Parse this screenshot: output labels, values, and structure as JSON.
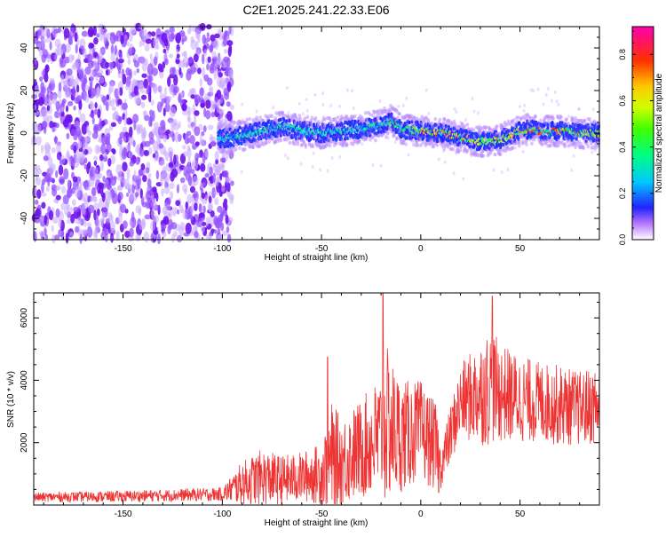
{
  "title": "C2E1.2025.241.22.33.E06",
  "chart_data": [
    {
      "type": "heatmap",
      "xlabel": "Height of straight line (km)",
      "ylabel": "Frequency (Hz)",
      "xlim": [
        -195,
        90
      ],
      "ylim": [
        -50,
        50
      ],
      "xticks": [
        -150,
        -100,
        -50,
        0,
        50
      ],
      "yticks": [
        -40,
        -20,
        0,
        20,
        40
      ],
      "colorbar": {
        "label": "Normalized spectral amplitude",
        "range": [
          0,
          0.92
        ],
        "ticks": [
          0.0,
          0.2,
          0.4,
          0.6,
          0.8
        ]
      },
      "noise_region_x": [
        -195,
        -95
      ],
      "signal_track": {
        "x": [
          -102,
          -95,
          -90,
          -80,
          -75,
          -70,
          -60,
          -50,
          -40,
          -30,
          -20,
          -15,
          -10,
          0,
          10,
          20,
          25,
          30,
          40,
          50,
          55,
          60,
          70,
          80,
          90
        ],
        "freq": [
          -3,
          -2,
          -1,
          1,
          2,
          3,
          1,
          0,
          1,
          2,
          4,
          6,
          2,
          1,
          0,
          -2,
          -3,
          -4,
          -3,
          1,
          2,
          1,
          1,
          0,
          0
        ]
      }
    },
    {
      "type": "line",
      "xlabel": "Height of straight line (km)",
      "ylabel": "SNR (10 * v/v)",
      "xlim": [
        -195,
        90
      ],
      "ylim": [
        0,
        6800
      ],
      "xticks": [
        -150,
        -100,
        -50,
        0,
        50
      ],
      "yticks": [
        2000,
        4000,
        6000
      ],
      "series": [
        {
          "name": "SNR",
          "color": "#ee3333",
          "envelope_x": [
            -195,
            -150,
            -100,
            -90,
            -80,
            -70,
            -60,
            -50,
            -45,
            -40,
            -30,
            -20,
            -18,
            -10,
            0,
            8,
            10,
            20,
            30,
            35,
            40,
            50,
            60,
            70,
            80,
            90
          ],
          "envelope_mean": [
            250,
            280,
            350,
            700,
            900,
            800,
            900,
            1000,
            1500,
            1400,
            1800,
            2200,
            2600,
            2200,
            2400,
            1800,
            1200,
            3300,
            3600,
            3800,
            3600,
            3400,
            3300,
            3200,
            3100,
            3200
          ],
          "envelope_amp": [
            150,
            180,
            220,
            700,
            900,
            800,
            800,
            1000,
            1800,
            1400,
            1600,
            2000,
            2600,
            1800,
            1600,
            1400,
            700,
            1200,
            1700,
            1900,
            1600,
            1400,
            1300,
            1300,
            1200,
            1300
          ],
          "peaks": [
            {
              "x": -47,
              "y": 4750
            },
            {
              "x": -19,
              "y": 6800
            },
            {
              "x": 9,
              "y": 400
            },
            {
              "x": 36,
              "y": 6700
            }
          ]
        }
      ]
    }
  ]
}
